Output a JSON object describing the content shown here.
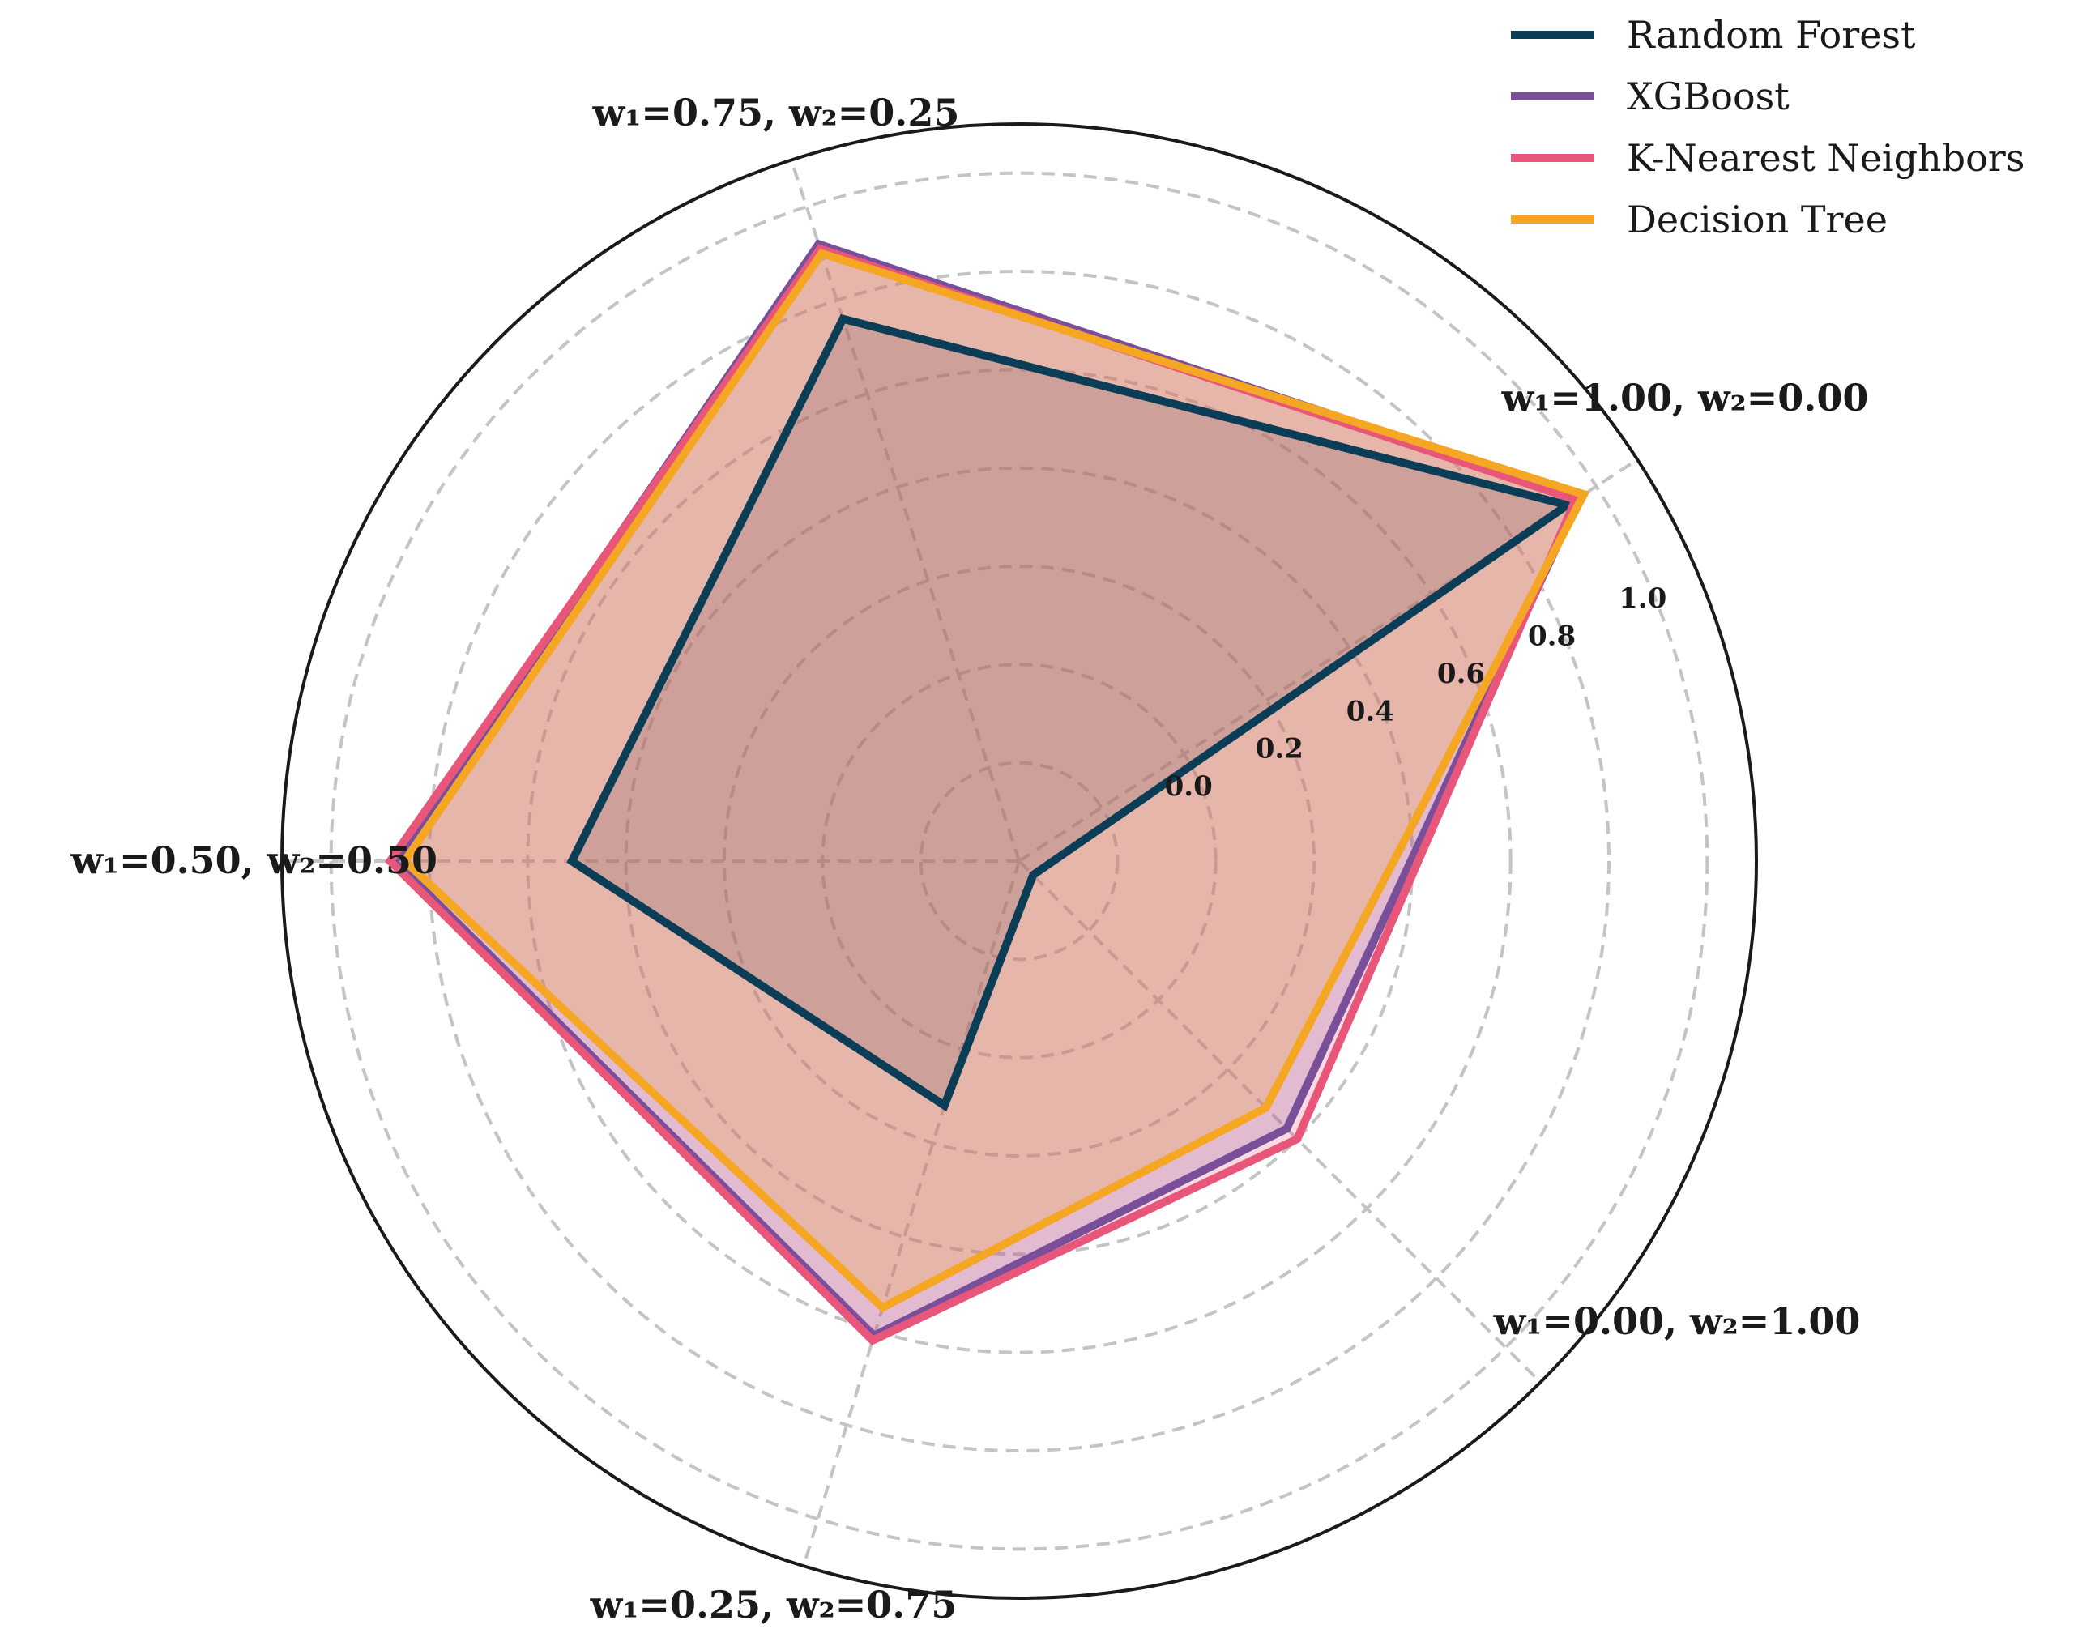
{
  "chart_data": {
    "type": "radar",
    "axes": [
      "w₁=1.00, w₂=0.00",
      "w₁=0.75, w₂=0.25",
      "w₁=0.50, w₂=0.50",
      "w₁=0.25, w₂=0.75",
      "w₁=0.00, w₂=1.00"
    ],
    "axis_angles_deg": [
      33,
      108,
      180,
      253,
      315
    ],
    "rlim": [
      -0.4,
      1.1
    ],
    "rticks": [
      "0.0",
      "0.2",
      "0.4",
      "0.6",
      "0.8",
      "1.0"
    ],
    "rtick_values": [
      0.0,
      0.2,
      0.4,
      0.6,
      0.8,
      1.0
    ],
    "grid": true,
    "legend_position": "top-right",
    "series": [
      {
        "name": "Random Forest",
        "values": [
          0.93,
          0.76,
          0.51,
          0.12,
          -0.36
        ],
        "color": "#0b3d57"
      },
      {
        "name": "XGBoost",
        "values": [
          0.96,
          0.92,
          0.87,
          0.61,
          0.37
        ],
        "color": "#7a4f9a"
      },
      {
        "name": "K-Nearest Neighbors",
        "values": [
          0.95,
          0.91,
          0.88,
          0.62,
          0.4
        ],
        "color": "#e8577a"
      },
      {
        "name": "Decision Tree",
        "values": [
          0.97,
          0.9,
          0.85,
          0.55,
          0.31
        ],
        "color": "#f5a623"
      }
    ]
  }
}
